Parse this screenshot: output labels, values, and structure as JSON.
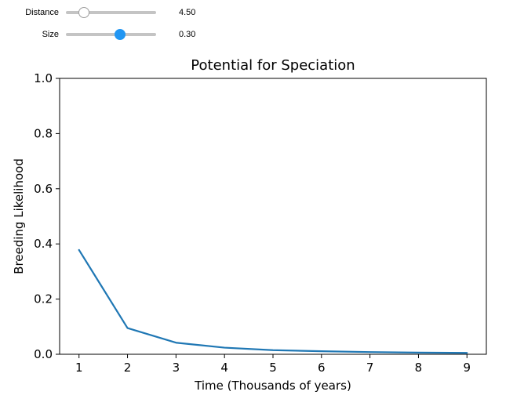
{
  "controls": {
    "distance": {
      "label": "Distance",
      "value_text": "4.50",
      "value": 4.5,
      "position": 0.2
    },
    "size": {
      "label": "Size",
      "value_text": "0.30",
      "value": 0.3,
      "position": 0.6
    }
  },
  "colors": {
    "line": "#1f77b4",
    "slider_active": "#2196f3",
    "slider_track": "#c4c4c4"
  },
  "chart_data": {
    "type": "line",
    "title": "Potential for Speciation",
    "xlabel": "Time (Thousands of years)",
    "ylabel": "Breeding Likelihood",
    "xlim": [
      0.6,
      9.4
    ],
    "ylim": [
      0.0,
      1.0
    ],
    "xticks": [
      1,
      2,
      3,
      4,
      5,
      6,
      7,
      8,
      9
    ],
    "yticks": [
      0.0,
      0.2,
      0.4,
      0.6,
      0.8,
      1.0
    ],
    "ytick_labels": [
      "0.0",
      "0.2",
      "0.4",
      "0.6",
      "0.8",
      "1.0"
    ],
    "grid": false,
    "series": [
      {
        "x": [
          1,
          2,
          3,
          4,
          5,
          6,
          7,
          8,
          9
        ],
        "y": [
          0.378,
          0.095,
          0.042,
          0.024,
          0.015,
          0.011,
          0.008,
          0.006,
          0.005
        ]
      }
    ]
  }
}
